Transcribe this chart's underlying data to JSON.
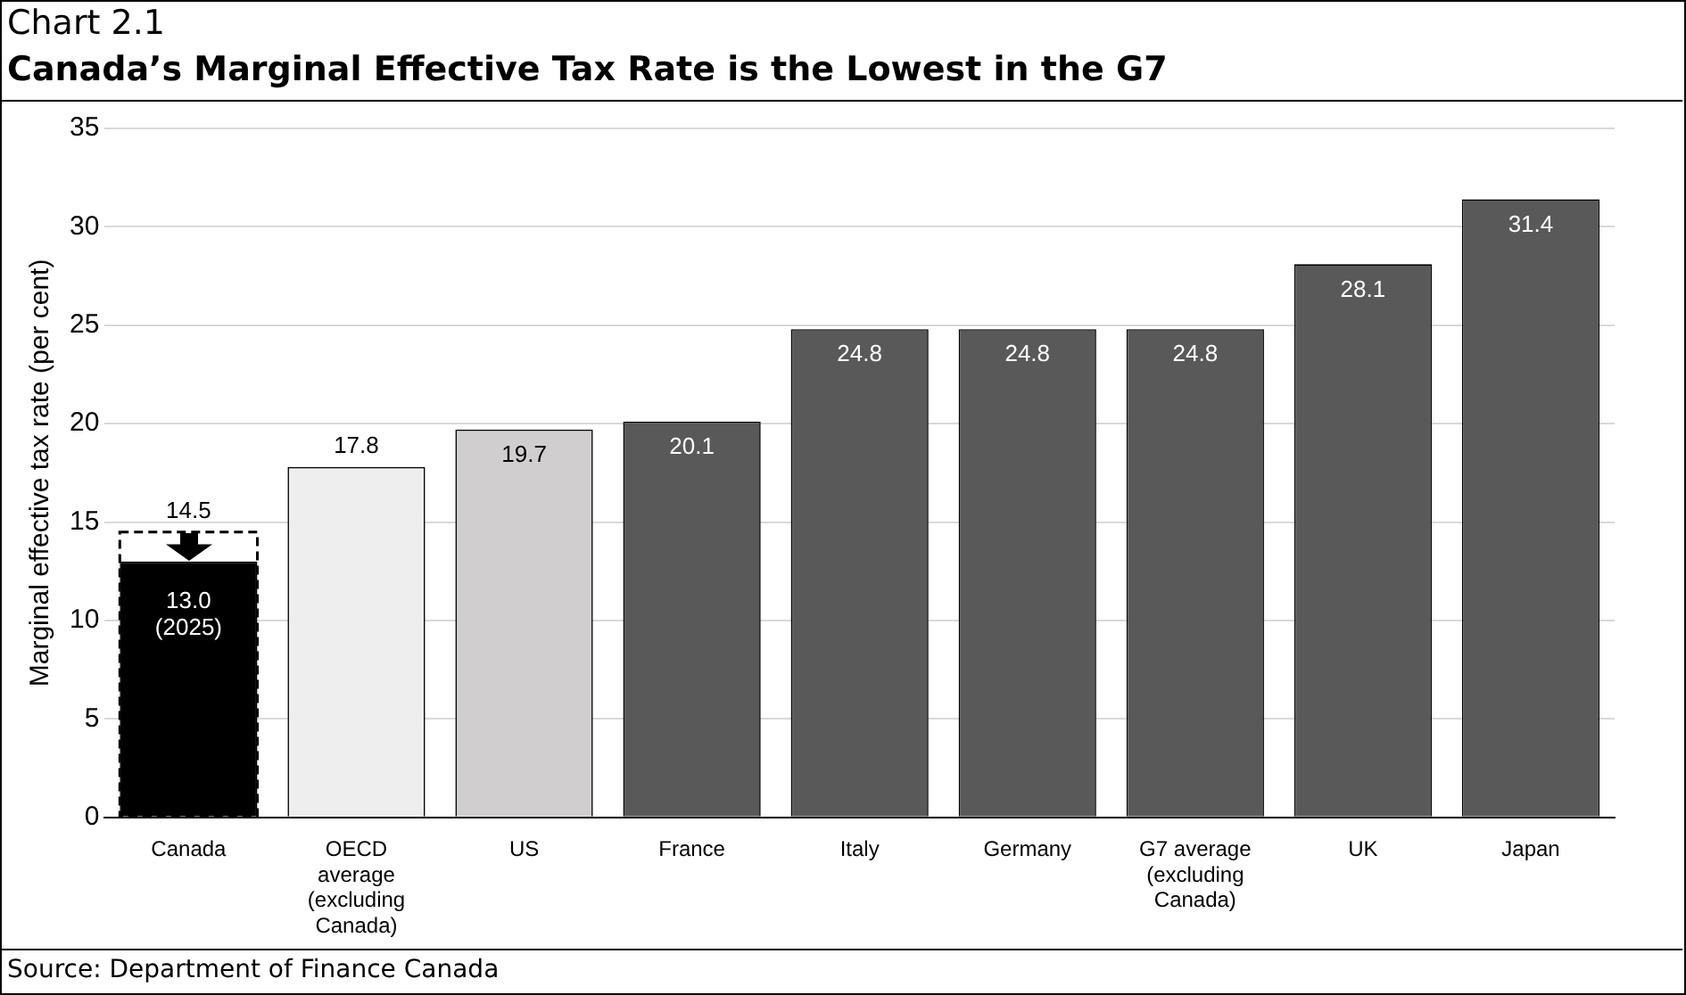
{
  "chart_data": {
    "type": "bar",
    "title": "Chart 2.1",
    "subtitle": "Canada’s Marginal Effective Tax Rate is the Lowest in the G7",
    "ylabel": "Marginal effective tax rate (per cent)",
    "categories": [
      "Canada",
      "OECD average (excluding Canada)",
      "US",
      "France",
      "Italy",
      "Germany",
      "G7 average (excluding Canada)",
      "UK",
      "Japan"
    ],
    "series": [
      {
        "values": [
          13.0,
          17.8,
          19.7,
          20.1,
          24.8,
          24.8,
          24.8,
          28.1,
          31.4
        ],
        "colors": [
          "#000000",
          "#eeeeee",
          "#d0cece",
          "#595959",
          "#595959",
          "#595959",
          "#595959",
          "#595959",
          "#595959"
        ],
        "value_labels": [
          "13.0\n(2025)",
          "17.8",
          "19.7",
          "20.1",
          "24.8",
          "24.8",
          "24.8",
          "28.1",
          "31.4"
        ]
      },
      {
        "values": [
          14.5,
          null,
          null,
          null,
          null,
          null,
          null,
          null,
          null
        ],
        "color": "#000000",
        "line_style": "dashed",
        "value_labels": [
          "14.5",
          null,
          null,
          null,
          null,
          null,
          null,
          null,
          null
        ]
      }
    ],
    "ylim": [
      0,
      35
    ],
    "yticks": [
      0,
      5,
      10,
      15,
      20,
      25,
      30,
      35
    ],
    "grid": "y",
    "legend": false,
    "annotations": [
      "Source: Department of Finance Canada"
    ]
  }
}
